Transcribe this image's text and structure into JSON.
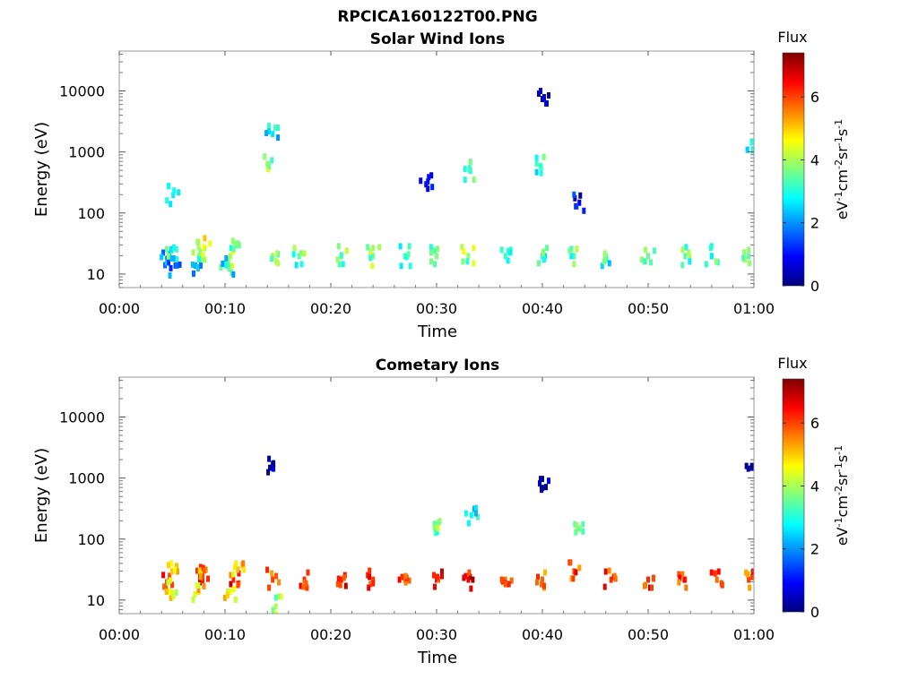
{
  "figure_title": "RPCICA160122T00.PNG",
  "colors": {
    "jet": [
      "#00007f",
      "#0000ff",
      "#007fff",
      "#00ffff",
      "#7fff7f",
      "#ffff00",
      "#ff7f00",
      "#ff0000",
      "#7f0000"
    ]
  },
  "chart_data": [
    {
      "type": "heatmap",
      "title": "Solar Wind Ions",
      "xlabel": "Time",
      "ylabel": "Energy (eV)",
      "x_ticks": [
        "00:00",
        "00:10",
        "00:20",
        "00:30",
        "00:40",
        "00:50",
        "01:00"
      ],
      "y_ticks": [
        "10",
        "100",
        "1000",
        "10000"
      ],
      "y_scale": "log",
      "xlim": [
        "00:00",
        "01:00"
      ],
      "ylim": [
        6,
        45000
      ],
      "colorbar": {
        "title": "Flux",
        "label": "eV-1cm-2sr-1s-1",
        "ticks": [
          "0",
          "2",
          "4",
          "6"
        ],
        "range": [
          0,
          7.4
        ]
      },
      "cells": [
        {
          "t": 4.5,
          "e": 18,
          "flux": 2.0
        },
        {
          "t": 5.0,
          "e": 25,
          "flux": 3.2
        },
        {
          "t": 5.3,
          "e": 14,
          "flux": 1.5
        },
        {
          "t": 5.1,
          "e": 200,
          "flux": 2.7
        },
        {
          "t": 7.5,
          "e": 20,
          "flux": 3.8
        },
        {
          "t": 8.0,
          "e": 28,
          "flux": 4.6
        },
        {
          "t": 7.2,
          "e": 14,
          "flux": 2.2
        },
        {
          "t": 10.5,
          "e": 20,
          "flux": 4.0
        },
        {
          "t": 11.0,
          "e": 30,
          "flux": 3.3
        },
        {
          "t": 10.2,
          "e": 14,
          "flux": 2.8
        },
        {
          "t": 14.5,
          "e": 20,
          "flux": 3.6
        },
        {
          "t": 14.0,
          "e": 650,
          "flux": 3.9
        },
        {
          "t": 14.5,
          "e": 2000,
          "flux": 2.6
        },
        {
          "t": 17.0,
          "e": 20,
          "flux": 3.4
        },
        {
          "t": 21.0,
          "e": 20,
          "flux": 3.5
        },
        {
          "t": 24.0,
          "e": 20,
          "flux": 3.6
        },
        {
          "t": 27.0,
          "e": 20,
          "flux": 3.3
        },
        {
          "t": 29.0,
          "e": 300,
          "flux": 1.0
        },
        {
          "t": 30.0,
          "e": 20,
          "flux": 3.7
        },
        {
          "t": 33.0,
          "e": 20,
          "flux": 3.8
        },
        {
          "t": 33.2,
          "e": 500,
          "flux": 3.0
        },
        {
          "t": 36.5,
          "e": 20,
          "flux": 3.2
        },
        {
          "t": 40.0,
          "e": 20,
          "flux": 3.0
        },
        {
          "t": 40.0,
          "e": 7500,
          "flux": 0.3
        },
        {
          "t": 39.8,
          "e": 600,
          "flux": 3.2
        },
        {
          "t": 43.0,
          "e": 20,
          "flux": 3.4
        },
        {
          "t": 43.5,
          "e": 150,
          "flux": 0.8
        },
        {
          "t": 46.0,
          "e": 20,
          "flux": 3.1
        },
        {
          "t": 50.0,
          "e": 20,
          "flux": 3.5
        },
        {
          "t": 53.5,
          "e": 20,
          "flux": 3.4
        },
        {
          "t": 56.0,
          "e": 20,
          "flux": 3.2
        },
        {
          "t": 59.5,
          "e": 20,
          "flux": 3.4
        },
        {
          "t": 59.8,
          "e": 1500,
          "flux": 2.6
        }
      ]
    },
    {
      "type": "heatmap",
      "title": "Cometary Ions",
      "xlabel": "Time",
      "ylabel": "Energy (eV)",
      "x_ticks": [
        "00:00",
        "00:10",
        "00:20",
        "00:30",
        "00:40",
        "00:50",
        "01:00"
      ],
      "y_ticks": [
        "10",
        "100",
        "1000",
        "10000"
      ],
      "y_scale": "log",
      "xlim": [
        "00:00",
        "01:00"
      ],
      "ylim": [
        6,
        45000
      ],
      "colorbar": {
        "title": "Flux",
        "label": "eV-1cm-2sr-1s-1",
        "ticks": [
          "0",
          "2",
          "4",
          "6"
        ],
        "range": [
          0,
          7.4
        ]
      },
      "cells": [
        {
          "t": 4.5,
          "e": 20,
          "flux": 6.0
        },
        {
          "t": 5.0,
          "e": 30,
          "flux": 5.0
        },
        {
          "t": 4.8,
          "e": 14,
          "flux": 4.6
        },
        {
          "t": 7.8,
          "e": 22,
          "flux": 6.6
        },
        {
          "t": 8.2,
          "e": 32,
          "flux": 5.4
        },
        {
          "t": 7.5,
          "e": 14,
          "flux": 4.8
        },
        {
          "t": 10.8,
          "e": 22,
          "flux": 6.2
        },
        {
          "t": 11.2,
          "e": 32,
          "flux": 5.1
        },
        {
          "t": 10.5,
          "e": 14,
          "flux": 4.5
        },
        {
          "t": 14.5,
          "e": 22,
          "flux": 6.0
        },
        {
          "t": 14.5,
          "e": 1500,
          "flux": 0.4
        },
        {
          "t": 14.8,
          "e": 8,
          "flux": 4.0
        },
        {
          "t": 17.5,
          "e": 22,
          "flux": 6.1
        },
        {
          "t": 21.0,
          "e": 22,
          "flux": 6.3
        },
        {
          "t": 24.0,
          "e": 22,
          "flux": 6.0
        },
        {
          "t": 27.0,
          "e": 22,
          "flux": 5.8
        },
        {
          "t": 30.0,
          "e": 22,
          "flux": 6.4
        },
        {
          "t": 29.8,
          "e": 180,
          "flux": 3.5
        },
        {
          "t": 33.0,
          "e": 22,
          "flux": 6.5
        },
        {
          "t": 33.3,
          "e": 250,
          "flux": 2.8
        },
        {
          "t": 36.5,
          "e": 22,
          "flux": 5.6
        },
        {
          "t": 40.0,
          "e": 22,
          "flux": 5.8
        },
        {
          "t": 40.0,
          "e": 700,
          "flux": 0.3
        },
        {
          "t": 43.0,
          "e": 30,
          "flux": 5.9
        },
        {
          "t": 43.5,
          "e": 150,
          "flux": 3.8
        },
        {
          "t": 46.5,
          "e": 22,
          "flux": 6.1
        },
        {
          "t": 50.0,
          "e": 22,
          "flux": 6.2
        },
        {
          "t": 53.5,
          "e": 22,
          "flux": 6.0
        },
        {
          "t": 56.5,
          "e": 22,
          "flux": 5.7
        },
        {
          "t": 59.5,
          "e": 22,
          "flux": 6.0
        },
        {
          "t": 59.8,
          "e": 1500,
          "flux": 0.4
        }
      ]
    }
  ]
}
